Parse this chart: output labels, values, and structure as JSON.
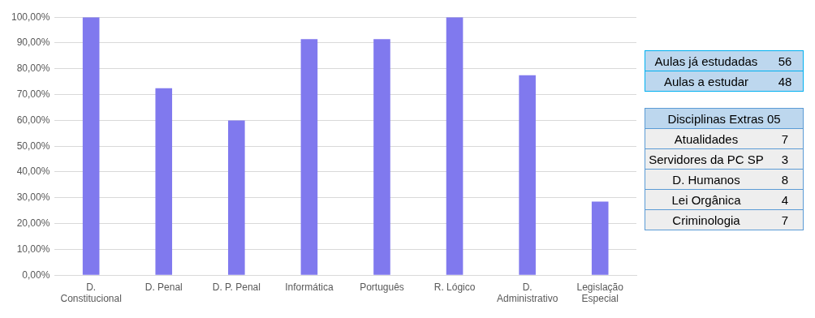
{
  "chart_data": [
    {
      "type": "bar",
      "categories": [
        "D. Constitucional",
        "D. Penal",
        "D. P. Penal",
        "Informática",
        "Português",
        "R. Lógico",
        "D. Administrativo",
        "Legislação Especial"
      ],
      "values": [
        100,
        72.5,
        60,
        91.5,
        91.5,
        100,
        77.5,
        28.5
      ],
      "color": "#8079ee",
      "ylim": [
        0,
        100
      ],
      "yticks": [
        {
          "value": 0,
          "label": "0,00%"
        },
        {
          "value": 10,
          "label": "10,00%"
        },
        {
          "value": 20,
          "label": "20,00%"
        },
        {
          "value": 30,
          "label": "30,00%"
        },
        {
          "value": 40,
          "label": "40,00%"
        },
        {
          "value": 50,
          "label": "50,00%"
        },
        {
          "value": 60,
          "label": "60,00%"
        },
        {
          "value": 70,
          "label": "70,00%"
        },
        {
          "value": 80,
          "label": "80,00%"
        },
        {
          "value": 90,
          "label": "90,00%"
        },
        {
          "value": 100,
          "label": "100,00%"
        }
      ],
      "grid": "y",
      "legend": false
    },
    {
      "type": "other",
      "categories": [
        "Aulas já estudadas",
        "Aulas a estudar"
      ],
      "values": [
        56,
        48
      ],
      "data_labels": true
    },
    {
      "type": "other",
      "title": "Disciplinas Extras 05",
      "categories": [
        "Atualidades",
        "Servidores da PC SP",
        "D. Humanos",
        "Lei Orgânica",
        "Criminologia"
      ],
      "values": [
        7,
        3,
        8,
        4,
        7
      ],
      "data_labels": true
    }
  ]
}
